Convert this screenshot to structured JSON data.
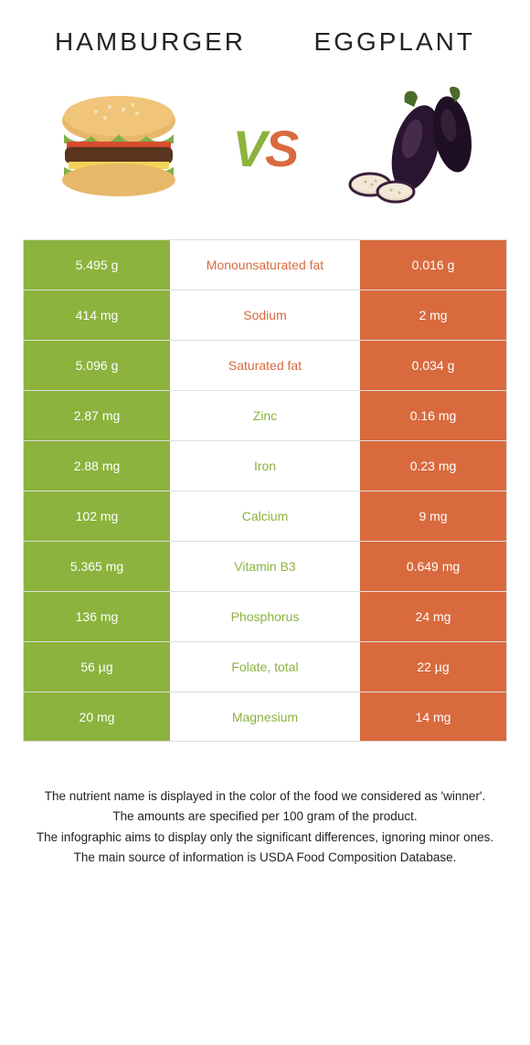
{
  "header": {
    "left_title": "Hamburger",
    "right_title": "Eggplant"
  },
  "vs": {
    "text": "VS",
    "left_color": "#8bb33d",
    "right_color": "#d96a3e"
  },
  "colors": {
    "left_bg": "#8bb33d",
    "right_bg": "#d96a3e",
    "left_text": "#8bb33d",
    "right_text": "#d96a3e",
    "border": "#dddddd",
    "text": "#222222"
  },
  "rows": [
    {
      "left": "5.495 g",
      "label": "Monounsaturated fat",
      "right": "0.016 g",
      "winner": "right"
    },
    {
      "left": "414 mg",
      "label": "Sodium",
      "right": "2 mg",
      "winner": "right"
    },
    {
      "left": "5.096 g",
      "label": "Saturated fat",
      "right": "0.034 g",
      "winner": "right"
    },
    {
      "left": "2.87 mg",
      "label": "Zinc",
      "right": "0.16 mg",
      "winner": "left"
    },
    {
      "left": "2.88 mg",
      "label": "Iron",
      "right": "0.23 mg",
      "winner": "left"
    },
    {
      "left": "102 mg",
      "label": "Calcium",
      "right": "9 mg",
      "winner": "left"
    },
    {
      "left": "5.365 mg",
      "label": "Vitamin B3",
      "right": "0.649 mg",
      "winner": "left"
    },
    {
      "left": "136 mg",
      "label": "Phosphorus",
      "right": "24 mg",
      "winner": "left"
    },
    {
      "left": "56 µg",
      "label": "Folate, total",
      "right": "22 µg",
      "winner": "left"
    },
    {
      "left": "20 mg",
      "label": "Magnesium",
      "right": "14 mg",
      "winner": "left"
    }
  ],
  "footer": {
    "line1": "The nutrient name is displayed in the color of the food we considered as 'winner'.",
    "line2": "The amounts are specified per 100 gram of the product.",
    "line3": "The infographic aims to display only the significant differences, ignoring minor ones.",
    "line4": "The main source of information is USDA Food Composition Database."
  }
}
